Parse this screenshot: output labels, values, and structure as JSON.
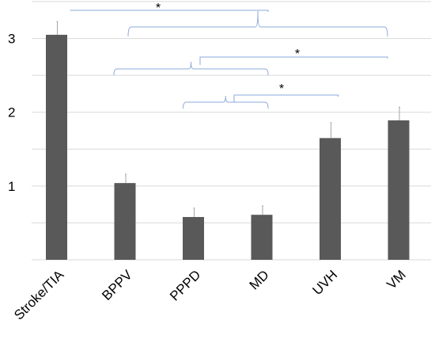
{
  "chart_data": {
    "type": "bar",
    "title": "",
    "xlabel": "",
    "ylabel": "",
    "categories": [
      "Stroke/TIA",
      "BPPV",
      "PPPD",
      "MD",
      "UVH",
      "VM"
    ],
    "values": [
      3.05,
      1.04,
      0.58,
      0.61,
      1.65,
      1.89
    ],
    "errors": [
      0.18,
      0.12,
      0.12,
      0.12,
      0.21,
      0.18
    ],
    "ylim": [
      0,
      3.5
    ],
    "yticks": [
      1,
      2,
      3
    ],
    "grid_values": [
      0.5,
      1,
      1.5,
      2,
      2.5,
      3,
      3.5
    ],
    "grid": true,
    "bar_color": "#595959",
    "bracket_color": "#8eaadb",
    "significance": [
      {
        "from": "Stroke/TIA",
        "to_group": [
          "BPPV",
          "VM"
        ],
        "label": "*"
      },
      {
        "from_group": [
          "BPPV",
          "MD"
        ],
        "to_group": [
          "MD",
          "VM"
        ],
        "label": "*"
      },
      {
        "from_group": [
          "PPPD",
          "MD"
        ],
        "to": "UVH",
        "label": "*"
      }
    ]
  }
}
